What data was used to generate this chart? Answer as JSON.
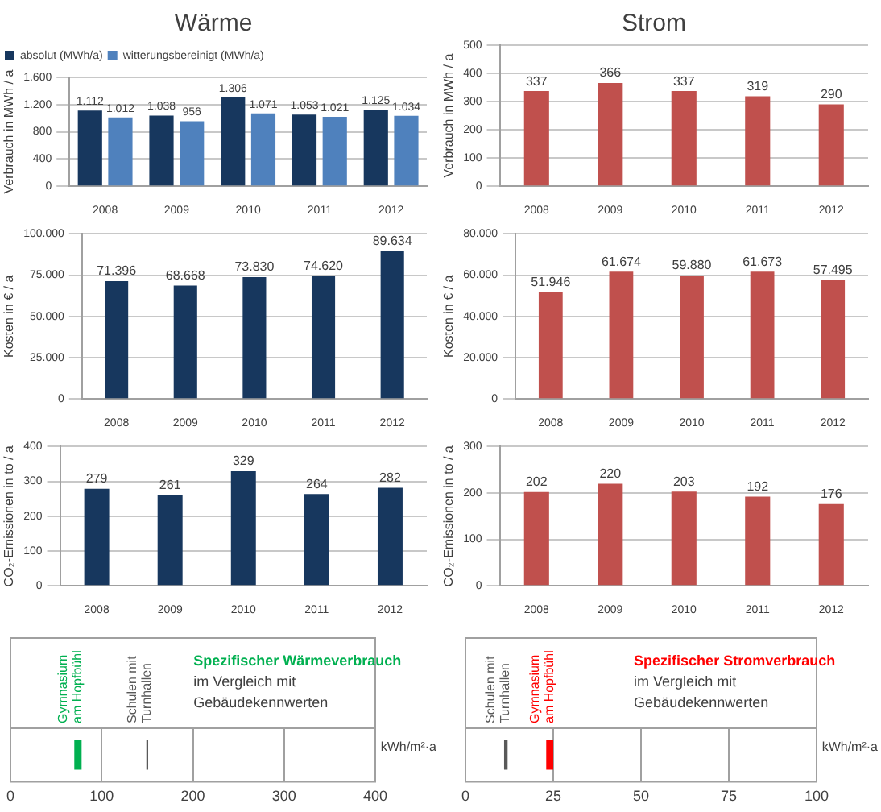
{
  "chart_data": [
    {
      "type": "bar",
      "title": "Wärme",
      "ylabel": "Verbrauch in MWh / a",
      "categories": [
        "2008",
        "2009",
        "2010",
        "2011",
        "2012"
      ],
      "series": [
        {
          "name": "absolut (MWh/a)",
          "color": "#17375e",
          "values": [
            1112,
            1038,
            1306,
            1053,
            1125
          ],
          "value_labels": [
            "1.112",
            "1.038",
            "1.306",
            "1.053",
            "1.125"
          ]
        },
        {
          "name": "witterungsbereinigt (MWh/a)",
          "color": "#4f81bd",
          "values": [
            1012,
            956,
            1071,
            1021,
            1034
          ],
          "value_labels": [
            "1.012",
            "956",
            "1.071",
            "1.021",
            "1.034"
          ]
        }
      ],
      "ylim": [
        0,
        1600
      ],
      "yticks": [
        0,
        400,
        800,
        {
          "value": 1200,
          "label": "1.200"
        },
        {
          "value": 1600,
          "label": "1.600"
        }
      ],
      "grid": "y",
      "legend": "top left"
    },
    {
      "type": "bar",
      "title": "Strom",
      "ylabel": "Verbrauch in MWh / a",
      "categories": [
        "2008",
        "2009",
        "2010",
        "2011",
        "2012"
      ],
      "values": [
        337,
        366,
        337,
        319,
        290
      ],
      "color": "#c0504d",
      "data_labels": true,
      "ylim": [
        0,
        500
      ],
      "yticks": [
        0,
        100,
        200,
        300,
        400,
        500
      ],
      "grid": "y"
    },
    {
      "type": "bar",
      "ylabel": "Kosten in € / a",
      "categories": [
        "2008",
        "2009",
        "2010",
        "2011",
        "2012"
      ],
      "values": [
        71396,
        68668,
        73830,
        74620,
        89634
      ],
      "value_labels": [
        "71.396",
        "68.668",
        "73.830",
        "74.620",
        "89.634"
      ],
      "color": "#17375e",
      "ylim": [
        0,
        100000
      ],
      "yticks": [
        0,
        {
          "value": 25000,
          "label": "25.000"
        },
        {
          "value": 50000,
          "label": "50.000"
        },
        {
          "value": 75000,
          "label": "75.000"
        },
        {
          "value": 100000,
          "label": "100.000"
        }
      ],
      "grid": "y"
    },
    {
      "type": "bar",
      "ylabel": "Kosten in € / a",
      "categories": [
        "2008",
        "2009",
        "2010",
        "2011",
        "2012"
      ],
      "values": [
        51946,
        61674,
        59880,
        61673,
        57495
      ],
      "value_labels": [
        "51.946",
        "61.674",
        "59.880",
        "61.673",
        "57.495"
      ],
      "color": "#c0504d",
      "ylim": [
        0,
        80000
      ],
      "yticks": [
        0,
        {
          "value": 20000,
          "label": "20.000"
        },
        {
          "value": 40000,
          "label": "40.000"
        },
        {
          "value": 60000,
          "label": "60.000"
        },
        {
          "value": 80000,
          "label": "80.000"
        }
      ],
      "grid": "y"
    },
    {
      "type": "bar",
      "ylabel": "CO₂-Emissionen in to / a",
      "categories": [
        "2008",
        "2009",
        "2010",
        "2011",
        "2012"
      ],
      "values": [
        279,
        261,
        329,
        264,
        282
      ],
      "color": "#17375e",
      "data_labels": true,
      "ylim": [
        0,
        400
      ],
      "yticks": [
        0,
        100,
        200,
        300,
        400
      ],
      "grid": "y"
    },
    {
      "type": "bar",
      "ylabel": "CO₂-Emissionen in to / a",
      "categories": [
        "2008",
        "2009",
        "2010",
        "2011",
        "2012"
      ],
      "values": [
        202,
        220,
        203,
        192,
        176
      ],
      "color": "#c0504d",
      "data_labels": true,
      "ylim": [
        0,
        300
      ],
      "yticks": [
        0,
        100,
        200,
        300
      ],
      "grid": "y"
    },
    {
      "type": "bar",
      "orientation": "horizontal",
      "tick_labels": "x",
      "title": "Spezifischer Wärmeverbrauch",
      "subtitle": "im Vergleich mit Gebäudekennwerten",
      "xlabel": "kWh/m²·a",
      "categories": [
        null
      ],
      "xlim": [
        0,
        400
      ],
      "xticks": [
        0,
        100,
        200,
        300,
        400
      ],
      "grid": "x",
      "series": [
        {
          "name": "Gymnasium am Hopfbühl",
          "color": "#00b050",
          "base": [
            70
          ],
          "values": [
            8
          ]
        },
        {
          "name": "Schulen mit Turnhallen",
          "color": "#595959",
          "base": [
            149
          ],
          "values": [
            2
          ]
        }
      ]
    },
    {
      "type": "bar",
      "orientation": "horizontal",
      "tick_labels": "x",
      "title": "Spezifischer Stromverbrauch",
      "subtitle": "im Vergleich mit Gebäudekennwerten",
      "xlabel": "kWh/m²·a",
      "categories": [
        null
      ],
      "xlim": [
        0,
        100
      ],
      "xticks": [
        0,
        25,
        50,
        75,
        100
      ],
      "grid": "x",
      "series": [
        {
          "name": "Schulen mit Turnhallen",
          "color": "#595959",
          "base": [
            11
          ],
          "values": [
            1
          ]
        },
        {
          "name": "Gymnasium am Hopfbühl",
          "color": "#ff0000",
          "base": [
            23
          ],
          "values": [
            2
          ]
        }
      ]
    }
  ]
}
